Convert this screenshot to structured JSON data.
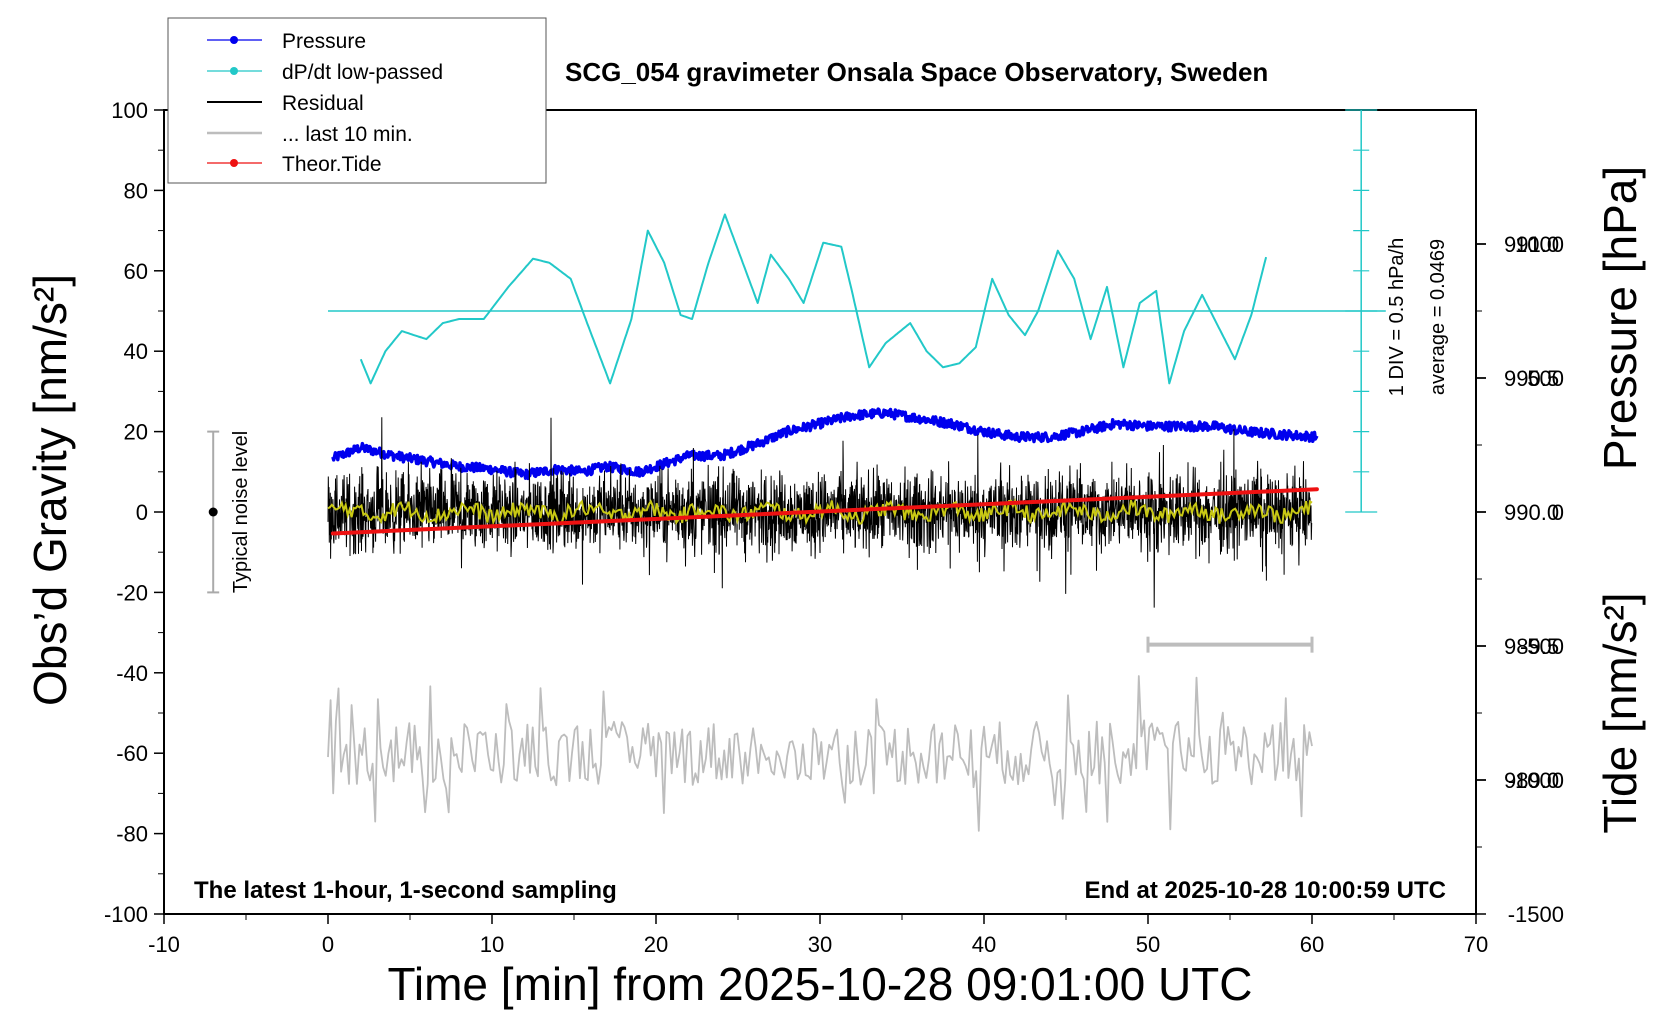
{
  "chart_data": {
    "type": "line",
    "title": "SCG_054 gravimeter Onsala Space Observatory, Sweden",
    "xlabel": "Time [min] from 2025-10-28 09:01:00 UTC",
    "ylabel": "Obs’d Gravity [nm/s²]",
    "pressure_axis_label": "Pressure [hPa]",
    "tide_axis_label": "Tide [nm/s²]",
    "xlim": [
      -10,
      70
    ],
    "ylim": [
      -100,
      100
    ],
    "pressure_lim": [
      988.5,
      991.5
    ],
    "tide_lim": [
      -1500,
      1500
    ],
    "x_ticks": [
      "-10",
      "0",
      "10",
      "20",
      "30",
      "40",
      "50",
      "60",
      "70"
    ],
    "y_ticks": [
      "-100",
      "-80",
      "-60",
      "-40",
      "-20",
      "0",
      "20",
      "40",
      "60",
      "80",
      "100"
    ],
    "pressure_ticks": [
      "989.0",
      "989.5",
      "990.0",
      "990.5",
      "991.0"
    ],
    "tide_ticks": [
      "-1500",
      "-1000",
      "-500",
      "0",
      "500",
      "1000"
    ],
    "annotations": {
      "noise_label": "Typical noise level",
      "dpdt_scale": "1 DIV = 0.5 hPa/h",
      "dpdt_average": "average = 0.0469",
      "bottom_left": "The latest 1-hour, 1-second sampling",
      "bottom_right": "End at 2025-10-28 10:00:59 UTC"
    },
    "legend": {
      "position": "top-left",
      "entries": [
        "Pressure",
        "dP/dt low-passed",
        "Residual",
        "... last 10 min.",
        "Theor.Tide"
      ]
    },
    "colors": {
      "pressure": "#0000ee",
      "dpdt": "#22c8c8",
      "residual": "#000000",
      "residual_smooth": "#c8c814",
      "last10": "#bdbdbd",
      "tide": "#ee1111"
    },
    "noise_level": {
      "x": -7,
      "center": 0,
      "range": [
        -20,
        20
      ]
    },
    "last10_bar": {
      "x_range": [
        50,
        60
      ],
      "y": -33
    },
    "dpdt_baseline": 50,
    "series": [
      {
        "name": "Pressure",
        "axis": "pressure",
        "x": [
          0.3,
          2,
          4,
          6,
          8,
          10,
          12,
          14,
          15.5,
          17,
          19,
          20.5,
          22,
          24,
          26,
          28,
          30,
          32,
          34,
          36,
          38,
          40,
          42,
          44,
          46,
          48,
          50,
          52,
          54,
          56,
          58,
          60.3
        ],
        "values": [
          990.2,
          990.24,
          990.21,
          990.19,
          990.17,
          990.16,
          990.14,
          990.16,
          990.15,
          990.17,
          990.15,
          990.18,
          990.21,
          990.21,
          990.25,
          990.3,
          990.33,
          990.36,
          990.37,
          990.35,
          990.33,
          990.3,
          990.28,
          990.28,
          990.3,
          990.33,
          990.32,
          990.32,
          990.32,
          990.3,
          990.29,
          990.28
        ]
      },
      {
        "name": "dP/dt low-passed",
        "axis": "gravity",
        "x": [
          2,
          2.6,
          3.5,
          4.5,
          6,
          7,
          8,
          9.5,
          11,
          12.5,
          13.5,
          14.8,
          15.8,
          17.2,
          18.5,
          19.5,
          20.5,
          21.5,
          22.2,
          23.2,
          24.2,
          25.2,
          26.2,
          27,
          28.1,
          29,
          30.2,
          31.3,
          32,
          33,
          34,
          35.5,
          36.5,
          37.5,
          38.5,
          39.5,
          40.5,
          41.5,
          42.5,
          43.3,
          44.5,
          45.5,
          46.5,
          47.5,
          48.5,
          49.5,
          50.5,
          51.3,
          52.2,
          53.3,
          54.3,
          55.3,
          56.3,
          57.3
        ],
        "values": [
          38,
          32,
          40,
          45,
          43,
          47,
          48,
          48,
          56,
          63,
          62,
          58,
          47,
          32,
          48,
          70,
          62,
          49,
          48,
          62,
          74,
          63,
          52,
          64,
          58,
          52,
          67,
          66,
          54,
          36,
          42,
          47,
          40,
          36,
          37,
          41,
          58,
          49,
          44,
          50,
          65,
          58,
          43,
          56,
          36,
          52,
          55,
          32,
          45,
          54,
          46,
          38,
          49,
          65
        ]
      },
      {
        "name": "Residual",
        "axis": "gravity",
        "x_range": [
          0,
          60
        ],
        "amplitude": 12
      },
      {
        "name": "... last 10 min.",
        "axis": "gravity",
        "x_range": [
          0,
          60
        ],
        "center": -60
      },
      {
        "name": "Theor.Tide",
        "axis": "tide",
        "x": [
          0.3,
          60.3
        ],
        "values": [
          -80,
          85
        ]
      }
    ]
  }
}
